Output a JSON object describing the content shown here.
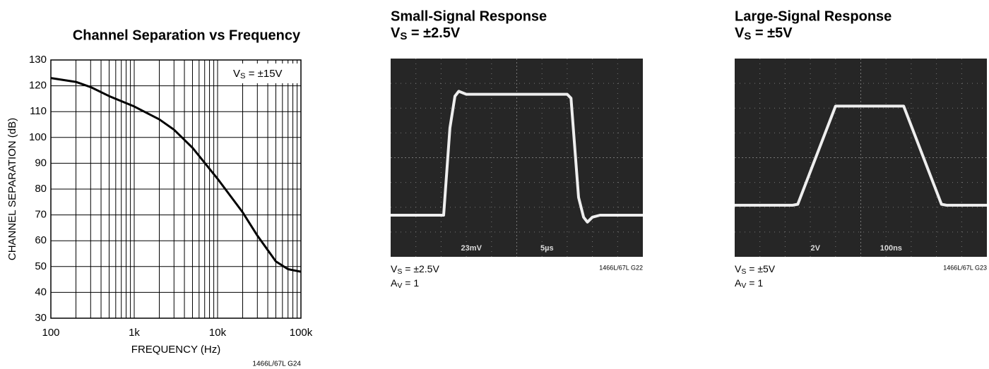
{
  "chart_data": {
    "type": "line",
    "title": "Channel Separation vs Frequency",
    "xlabel": "FREQUENCY (Hz)",
    "ylabel": "CHANNEL SEPARATION (dB)",
    "annotation": {
      "text": "V",
      "sub": "S",
      "rest": " = ±15V"
    },
    "footnote": "1466L/67L G24",
    "xscale": "log",
    "grid": true,
    "x": [
      100,
      200,
      300,
      500,
      1000,
      2000,
      3000,
      5000,
      10000,
      20000,
      30000,
      50000,
      70000,
      100000
    ],
    "series": [
      {
        "color": "#000000",
        "values": [
          123,
          121.5,
          119.5,
          116,
          112,
          107,
          103,
          96,
          84,
          71,
          62,
          52,
          49,
          48
        ]
      }
    ],
    "xlim": [
      100,
      100000
    ],
    "xticks": [
      100,
      {
        "value": 1000,
        "label": "1k"
      },
      {
        "value": 10000,
        "label": "10k"
      },
      {
        "value": 100000,
        "label": "100k"
      }
    ],
    "x_minor_ticks": [
      200,
      300,
      400,
      500,
      600,
      700,
      800,
      900,
      2000,
      3000,
      4000,
      5000,
      6000,
      7000,
      8000,
      9000,
      20000,
      30000,
      40000,
      50000,
      60000,
      70000,
      80000,
      90000
    ],
    "ylim": [
      30,
      130
    ],
    "yticks": [
      30,
      40,
      50,
      60,
      70,
      80,
      90,
      100,
      110,
      120,
      130
    ]
  },
  "scope_panels": [
    {
      "title": "Small-Signal Response",
      "condition": {
        "text": "V",
        "sub": "S",
        "rest": " = ±2.5V"
      },
      "caption": [
        {
          "text": "V",
          "sub": "S",
          "rest": " = ±2.5V"
        },
        {
          "text": "A",
          "sub": "V",
          "rest": " = 1"
        }
      ],
      "scale_labels": [
        "23mV",
        "5µs"
      ],
      "footnote": "1466L/67L G22"
    },
    {
      "title": "Large-Signal Response",
      "condition": {
        "text": "V",
        "sub": "S",
        "rest": " = ±5V"
      },
      "caption": [
        {
          "text": "V",
          "sub": "S",
          "rest": " = ±5V"
        },
        {
          "text": "A",
          "sub": "V",
          "rest": " = 1"
        }
      ],
      "scale_labels": [
        "2V",
        "100ns"
      ],
      "footnote": "1466L/67L G23"
    }
  ]
}
